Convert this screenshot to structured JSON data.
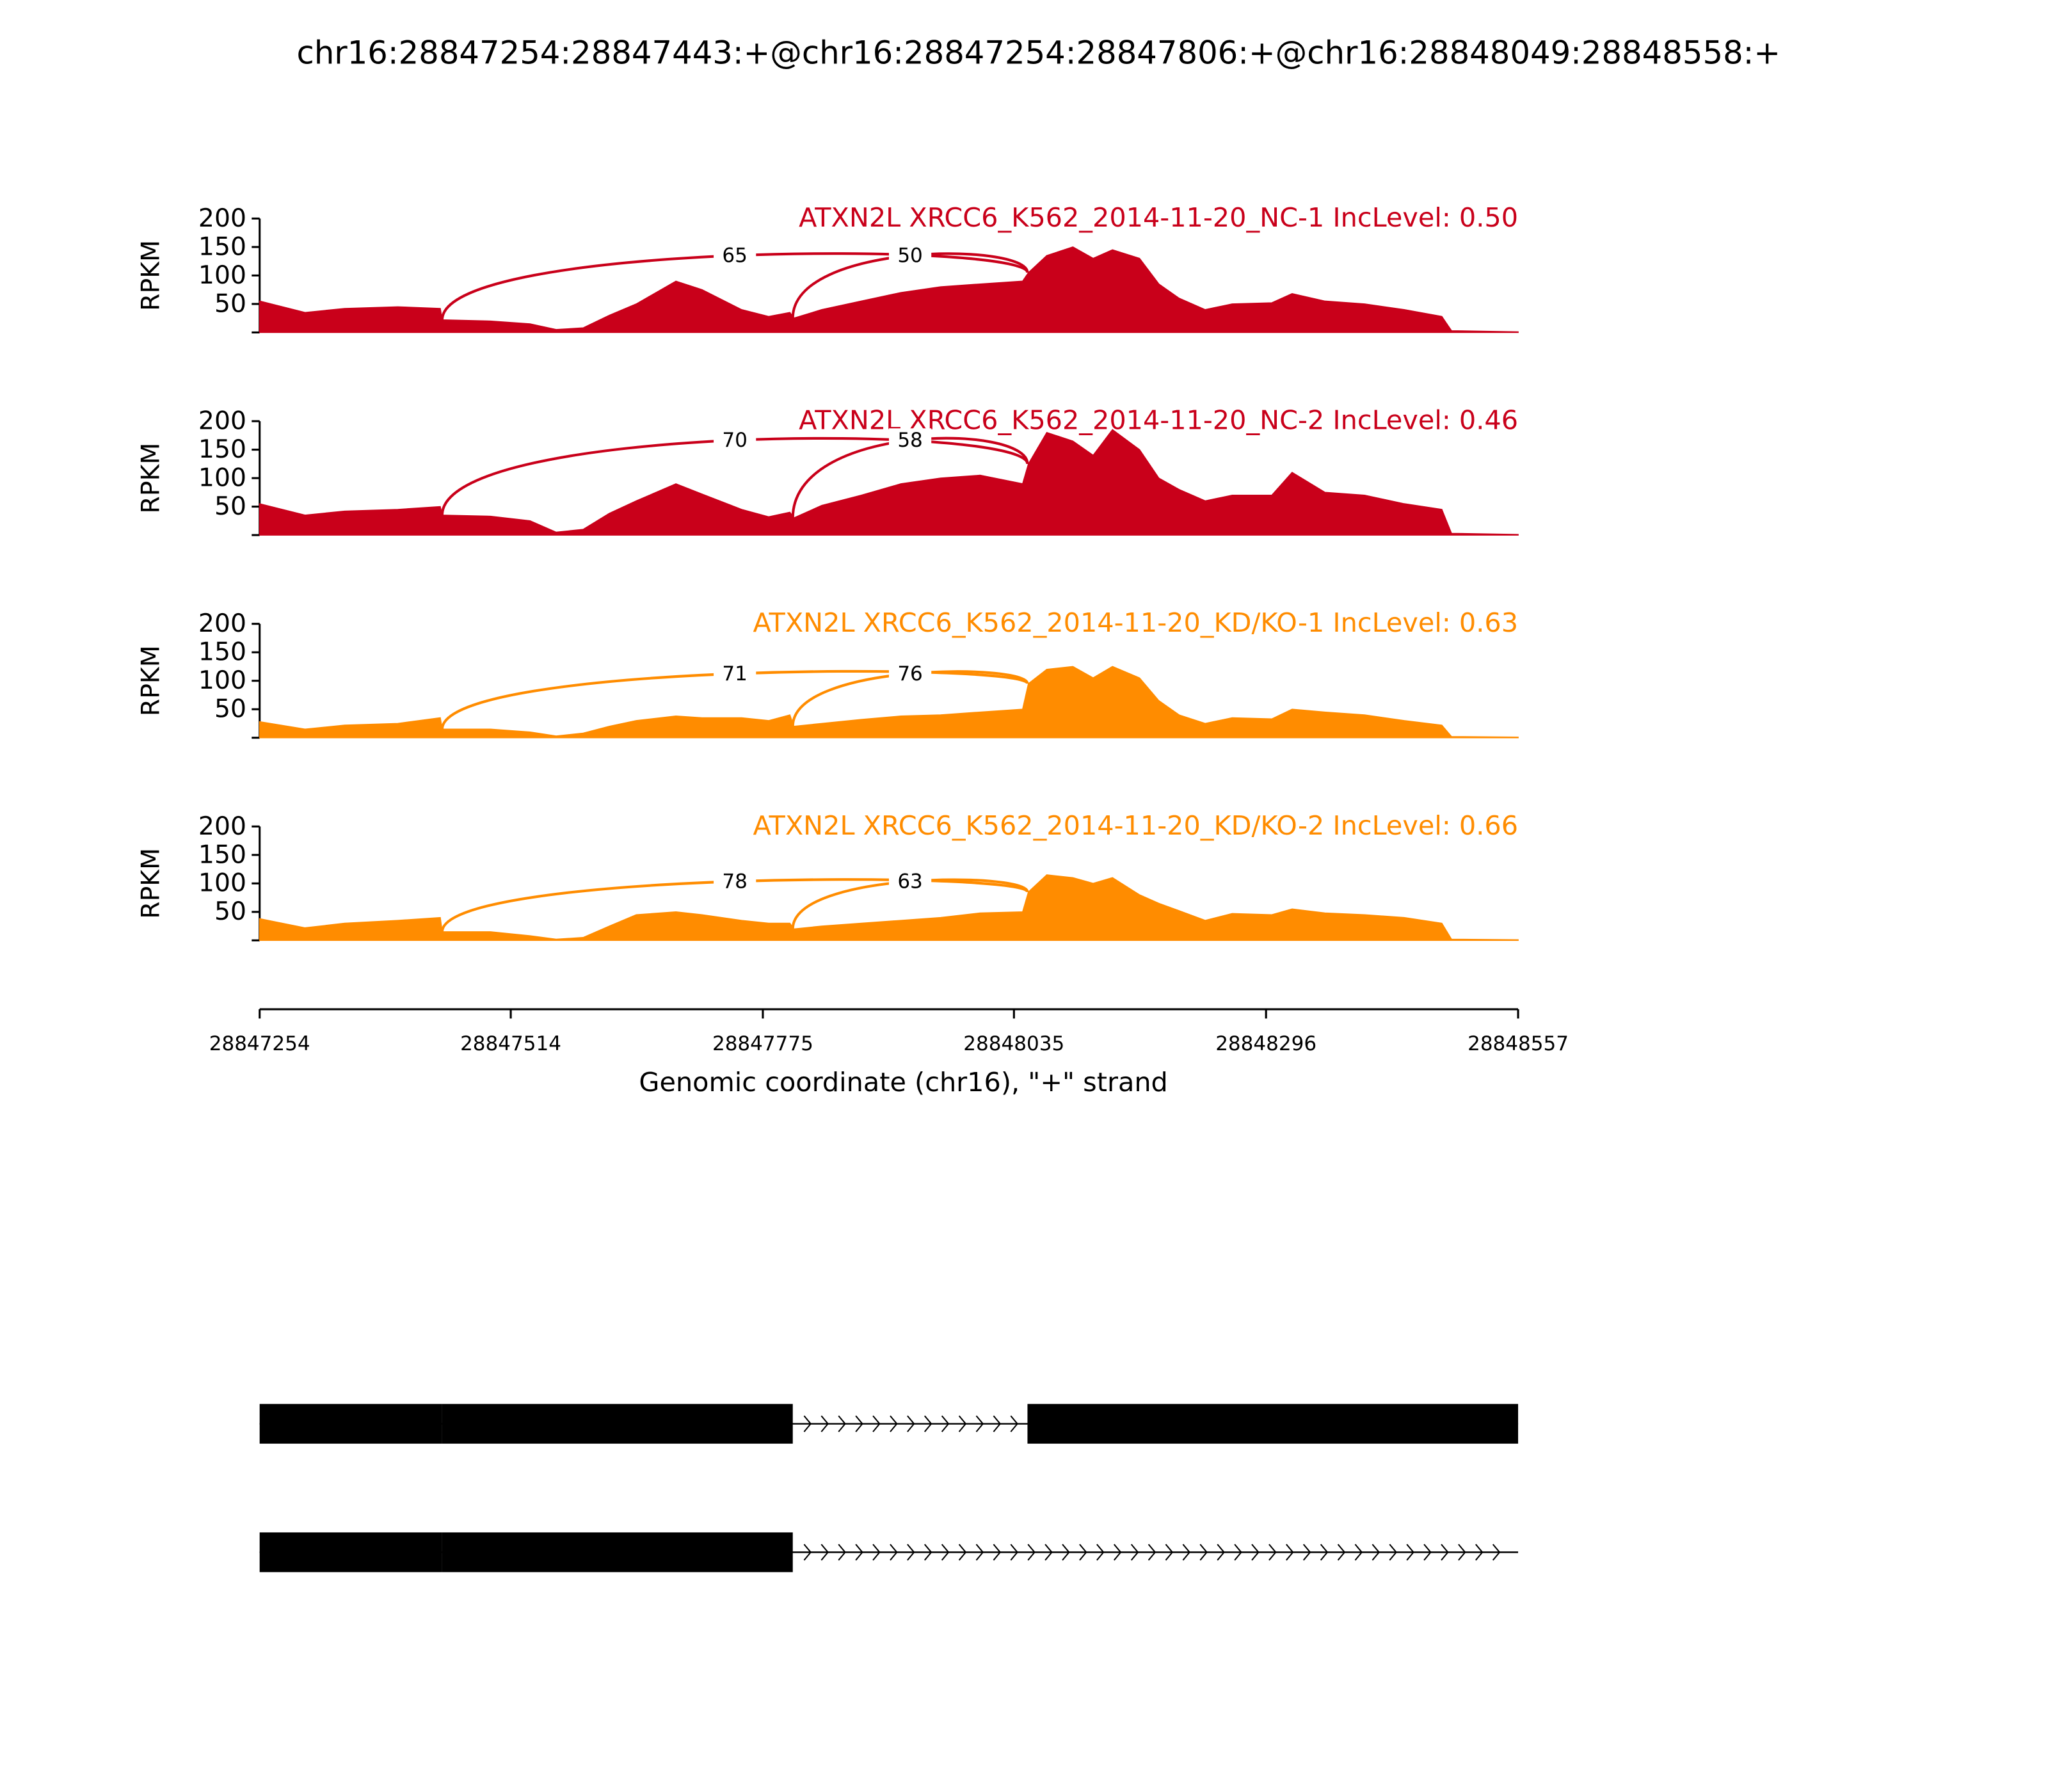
{
  "title": "chr16:28847254:28847443:+@chr16:28847254:28847806:+@chr16:28848049:28848558:+",
  "chart_data": [
    {
      "type": "area",
      "title": "ATXN2L XRCC6_K562_2014-11-20_NC-1 IncLevel: 0.50",
      "color": "#c9001a",
      "ylabel": "RPKM",
      "ylim": [
        0,
        200
      ],
      "yticks": [
        50,
        100,
        150,
        200
      ],
      "x": [
        28847254,
        28847301,
        28847342,
        28847397,
        28847441,
        28847443,
        28847493,
        28847534,
        28847561,
        28847589,
        28847616,
        28847644,
        28847685,
        28847712,
        28847753,
        28847781,
        28847803,
        28847807,
        28847836,
        28847877,
        28847918,
        28847959,
        28848000,
        28848044,
        28848050,
        28848069,
        28848096,
        28848117,
        28848137,
        28848165,
        28848185,
        28848206,
        28848233,
        28848261,
        28848302,
        28848323,
        28848357,
        28848398,
        28848439,
        28848478,
        28848488,
        28848557
      ],
      "values": [
        55,
        35,
        42,
        45,
        42,
        22,
        20,
        15,
        5,
        8,
        30,
        50,
        90,
        75,
        40,
        28,
        35,
        25,
        40,
        55,
        70,
        80,
        85,
        90,
        105,
        135,
        150,
        130,
        145,
        130,
        85,
        60,
        40,
        50,
        52,
        68,
        55,
        50,
        40,
        28,
        3,
        1
      ],
      "junctions": [
        {
          "start": 28847443,
          "end": 28848049,
          "count": 65
        },
        {
          "start": 28847806,
          "end": 28848049,
          "count": 50
        }
      ]
    },
    {
      "type": "area",
      "title": "ATXN2L XRCC6_K562_2014-11-20_NC-2 IncLevel: 0.46",
      "color": "#c9001a",
      "ylabel": "RPKM",
      "ylim": [
        0,
        200
      ],
      "yticks": [
        50,
        100,
        150,
        200
      ],
      "x": [
        28847254,
        28847301,
        28847342,
        28847397,
        28847441,
        28847443,
        28847493,
        28847534,
        28847561,
        28847589,
        28847616,
        28847644,
        28847685,
        28847712,
        28847753,
        28847781,
        28847803,
        28847807,
        28847836,
        28847877,
        28847918,
        28847959,
        28848000,
        28848044,
        28848050,
        28848069,
        28848096,
        28848117,
        28848137,
        28848165,
        28848185,
        28848206,
        28848233,
        28848261,
        28848302,
        28848323,
        28848357,
        28848398,
        28848439,
        28848478,
        28848488,
        28848557
      ],
      "values": [
        55,
        35,
        42,
        45,
        50,
        35,
        33,
        25,
        5,
        10,
        38,
        60,
        90,
        72,
        45,
        32,
        40,
        30,
        52,
        70,
        90,
        100,
        105,
        90,
        125,
        180,
        165,
        140,
        185,
        150,
        100,
        80,
        60,
        70,
        70,
        110,
        75,
        70,
        55,
        45,
        3,
        1
      ],
      "junctions": [
        {
          "start": 28847443,
          "end": 28848049,
          "count": 70
        },
        {
          "start": 28847806,
          "end": 28848049,
          "count": 58
        }
      ]
    },
    {
      "type": "area",
      "title": "ATXN2L XRCC6_K562_2014-11-20_KD/KO-1 IncLevel: 0.63",
      "color": "#ff8c00",
      "ylabel": "RPKM",
      "ylim": [
        0,
        200
      ],
      "yticks": [
        50,
        100,
        150,
        200
      ],
      "x": [
        28847254,
        28847301,
        28847342,
        28847397,
        28847441,
        28847443,
        28847493,
        28847534,
        28847561,
        28847589,
        28847616,
        28847644,
        28847685,
        28847712,
        28847753,
        28847781,
        28847803,
        28847807,
        28847836,
        28847877,
        28847918,
        28847959,
        28848000,
        28848044,
        28848050,
        28848069,
        28848096,
        28848117,
        28848137,
        28848165,
        28848185,
        28848206,
        28848233,
        28848261,
        28848302,
        28848323,
        28848357,
        28848398,
        28848439,
        28848478,
        28848488,
        28848557
      ],
      "values": [
        28,
        15,
        22,
        25,
        35,
        15,
        15,
        10,
        3,
        8,
        20,
        30,
        38,
        35,
        35,
        30,
        40,
        20,
        25,
        32,
        38,
        40,
        45,
        50,
        95,
        120,
        125,
        105,
        125,
        105,
        65,
        40,
        25,
        35,
        33,
        50,
        45,
        40,
        30,
        22,
        2,
        1
      ],
      "junctions": [
        {
          "start": 28847443,
          "end": 28848049,
          "count": 71
        },
        {
          "start": 28847806,
          "end": 28848049,
          "count": 76
        }
      ]
    },
    {
      "type": "area",
      "title": "ATXN2L XRCC6_K562_2014-11-20_KD/KO-2 IncLevel: 0.66",
      "color": "#ff8c00",
      "ylabel": "RPKM",
      "ylim": [
        0,
        200
      ],
      "yticks": [
        50,
        100,
        150,
        200
      ],
      "x": [
        28847254,
        28847301,
        28847342,
        28847397,
        28847441,
        28847443,
        28847493,
        28847534,
        28847561,
        28847589,
        28847616,
        28847644,
        28847685,
        28847712,
        28847753,
        28847781,
        28847803,
        28847807,
        28847836,
        28847877,
        28847918,
        28847959,
        28848000,
        28848044,
        28848050,
        28848069,
        28848096,
        28848117,
        28848137,
        28848165,
        28848185,
        28848206,
        28848233,
        28848261,
        28848302,
        28848323,
        28848357,
        28848398,
        28848439,
        28848478,
        28848488,
        28848557
      ],
      "values": [
        38,
        22,
        30,
        35,
        40,
        15,
        15,
        8,
        2,
        5,
        25,
        45,
        50,
        45,
        35,
        30,
        30,
        20,
        25,
        30,
        35,
        40,
        48,
        50,
        85,
        115,
        110,
        100,
        110,
        80,
        65,
        52,
        35,
        47,
        45,
        55,
        48,
        45,
        40,
        30,
        2,
        1
      ],
      "junctions": [
        {
          "start": 28847443,
          "end": 28848049,
          "count": 78
        },
        {
          "start": 28847806,
          "end": 28848049,
          "count": 63
        }
      ]
    }
  ],
  "x_axis": {
    "label": "Genomic coordinate (chr16), \"+\" strand",
    "xlim": [
      28847254,
      28848557
    ],
    "xticks": [
      28847254,
      28847514,
      28847775,
      28848035,
      28848296,
      28848557
    ]
  },
  "gene_model": {
    "transcripts": [
      {
        "exons": [
          [
            28847254,
            28847443
          ],
          [
            28847443,
            28847806
          ],
          [
            28848049,
            28848557
          ]
        ]
      },
      {
        "exons": [
          [
            28847254,
            28847443
          ],
          [
            28847443,
            28847806
          ]
        ]
      }
    ]
  }
}
